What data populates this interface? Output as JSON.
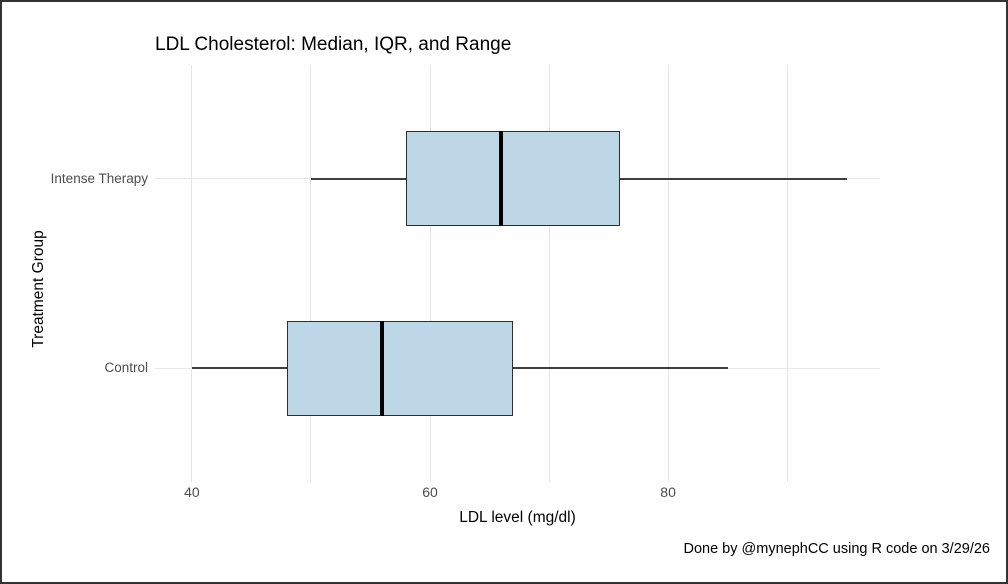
{
  "chart_data": {
    "type": "boxplot",
    "orientation": "horizontal",
    "title": "LDL Cholesterol: Median, IQR, and Range",
    "xlabel": "LDL level (mg/dl)",
    "ylabel": "Treatment Group",
    "caption": "Done by @mynephCC using R code on 3/29/26",
    "categories": [
      "Intense Therapy",
      "Control"
    ],
    "series": [
      {
        "name": "Intense Therapy",
        "whisker_min": 50,
        "q1": 58,
        "median": 66,
        "q3": 76,
        "whisker_max": 95
      },
      {
        "name": "Control",
        "whisker_min": 40,
        "q1": 48,
        "median": 56,
        "q3": 67,
        "whisker_max": 85
      }
    ],
    "xlim": [
      36.9,
      97.8
    ],
    "x_ticks": [
      40,
      60,
      80
    ],
    "x_gridlines": [
      40,
      50,
      60,
      70,
      80,
      90
    ],
    "grid": "on",
    "legend": "none",
    "colors": {
      "box_fill": "#bdd7e6",
      "box_border": "#2e2e2e",
      "median_line": "#000000",
      "whisker": "#3f3f3f",
      "gridline": "#e6e6e6",
      "tick_label": "#4d4d4d",
      "title_text": "#000000",
      "background": "#ffffff",
      "frame_border": "#333333"
    }
  }
}
